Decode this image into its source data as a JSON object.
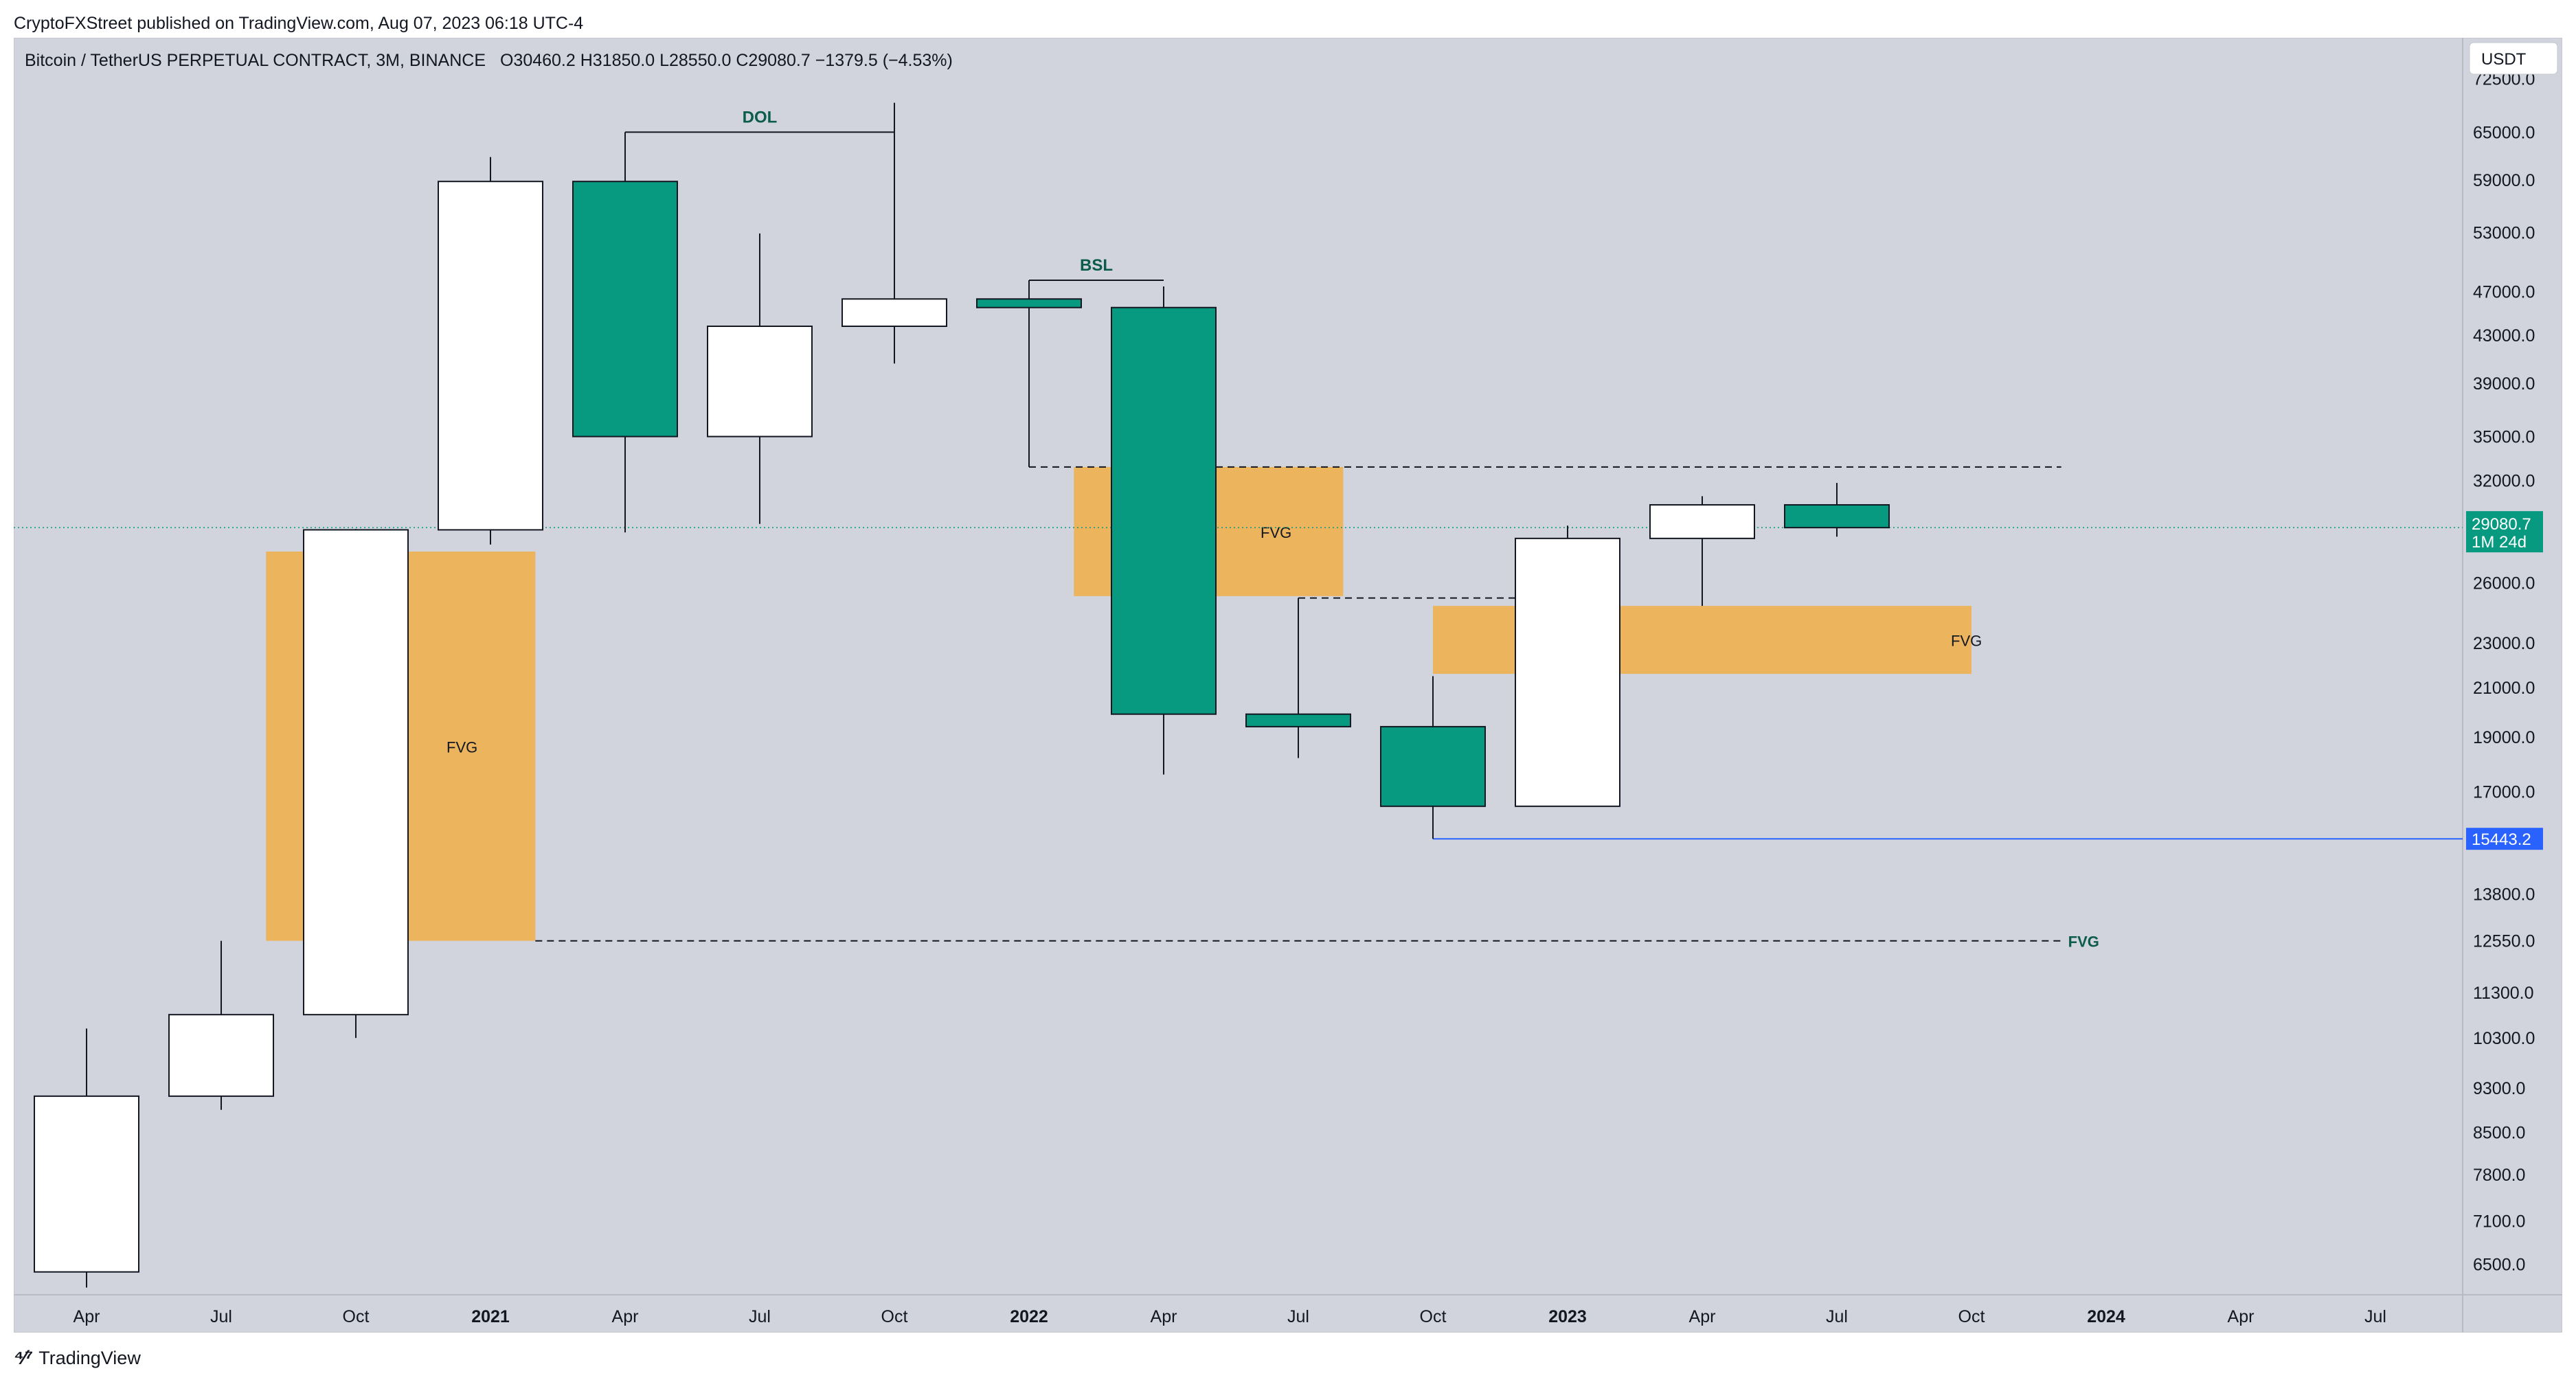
{
  "header": {
    "published": "CryptoFXStreet published on TradingView.com, Aug 07, 2023 06:18 UTC-4"
  },
  "legend": {
    "symbol": "Bitcoin / TetherUS PERPETUAL CONTRACT, 3M, BINANCE",
    "ohlc": "O30460.2  H31850.0  L28550.0  C29080.7  −1379.5 (−4.53%)"
  },
  "currency_badge": "USDT",
  "footer": {
    "brand": "TradingView"
  },
  "colors": {
    "background": "#d1d4dc",
    "bull_body": "#ffffff",
    "bear_body": "#089981",
    "fvg_zone": "#ecb45d",
    "annotation_text": "#0b5c4c",
    "level_line": "#2962ff"
  },
  "chart_data": {
    "type": "candlestick",
    "timeframe": "3M",
    "y_scale": "log",
    "ylim": [
      6000,
      76000
    ],
    "y_ticks": [
      "72500.0",
      "65000.0",
      "59000.0",
      "53000.0",
      "47000.0",
      "43000.0",
      "39000.0",
      "35000.0",
      "32000.0",
      "26000.0",
      "23000.0",
      "21000.0",
      "19000.0",
      "17000.0",
      "13800.0",
      "12550.0",
      "11300.0",
      "10300.0",
      "9300.0",
      "8500.0",
      "7800.0",
      "7100.0",
      "6500.0"
    ],
    "x_ticks": [
      "Apr",
      "Jul",
      "Oct",
      "2021",
      "Apr",
      "Jul",
      "Oct",
      "2022",
      "Apr",
      "Jul",
      "Oct",
      "2023",
      "Apr",
      "Jul",
      "Oct",
      "2024",
      "Apr",
      "Jul"
    ],
    "x_start": "2020-04",
    "candles": [
      {
        "period": "2020-04",
        "open": 6400,
        "high": 10500,
        "low": 6200,
        "close": 9150
      },
      {
        "period": "2020-07",
        "open": 9150,
        "high": 12550,
        "low": 8900,
        "close": 10800
      },
      {
        "period": "2020-10",
        "open": 10800,
        "high": 29000,
        "low": 10300,
        "close": 28950
      },
      {
        "period": "2021-01",
        "open": 28950,
        "high": 61800,
        "low": 28100,
        "close": 58800
      },
      {
        "period": "2021-04",
        "open": 58800,
        "high": 65000,
        "low": 28800,
        "close": 35000
      },
      {
        "period": "2021-07",
        "open": 35000,
        "high": 52900,
        "low": 29300,
        "close": 43800
      },
      {
        "period": "2021-10",
        "open": 43800,
        "high": 69000,
        "low": 40600,
        "close": 46300
      },
      {
        "period": "2022-01",
        "open": 46300,
        "high": 48100,
        "low": 32900,
        "close": 45500
      },
      {
        "period": "2022-04",
        "open": 45500,
        "high": 47500,
        "low": 17600,
        "close": 19900
      },
      {
        "period": "2022-07",
        "open": 19900,
        "high": 25200,
        "low": 18200,
        "close": 19400
      },
      {
        "period": "2022-10",
        "open": 19400,
        "high": 21500,
        "low": 15443.2,
        "close": 16500
      },
      {
        "period": "2023-01",
        "open": 16500,
        "high": 29200,
        "low": 16500,
        "close": 28450
      },
      {
        "period": "2023-04",
        "open": 28450,
        "high": 31000,
        "low": 24800,
        "close": 30460.2
      },
      {
        "period": "2023-07",
        "open": 30460.2,
        "high": 31850,
        "low": 28550,
        "close": 29080.7
      }
    ],
    "zones": [
      {
        "label": "FVG",
        "from": "2020-08",
        "to": "2021-02",
        "low": 12550,
        "high": 27700
      },
      {
        "label": "FVG",
        "from": "2022-02",
        "to": "2022-08",
        "low": 25300,
        "high": 32900
      },
      {
        "label": "FVG",
        "from": "2022-10",
        "to": "2023-10",
        "low": 21600,
        "high": 24800
      }
    ],
    "annotations": [
      {
        "label": "DOL",
        "price": 65000,
        "from": "2021-04",
        "to": "2021-10"
      },
      {
        "label": "BSL",
        "price": 48100,
        "from": "2022-01",
        "to": "2022-04"
      },
      {
        "label": "FVG",
        "price": 12550,
        "from": "2021-02",
        "to": "2023-12",
        "style": "dashed"
      }
    ],
    "dashed_levels": [
      {
        "price": 32900,
        "from": "2022-01",
        "to": "2023-12"
      },
      {
        "price": 25200,
        "from": "2022-07",
        "to": "2023-01"
      }
    ],
    "price_level": {
      "price": 15443.2,
      "label": "15443.2",
      "from": "2022-10"
    },
    "last_price": {
      "price": 29080.7,
      "label": "29080.7",
      "countdown": "1M 24d"
    }
  }
}
